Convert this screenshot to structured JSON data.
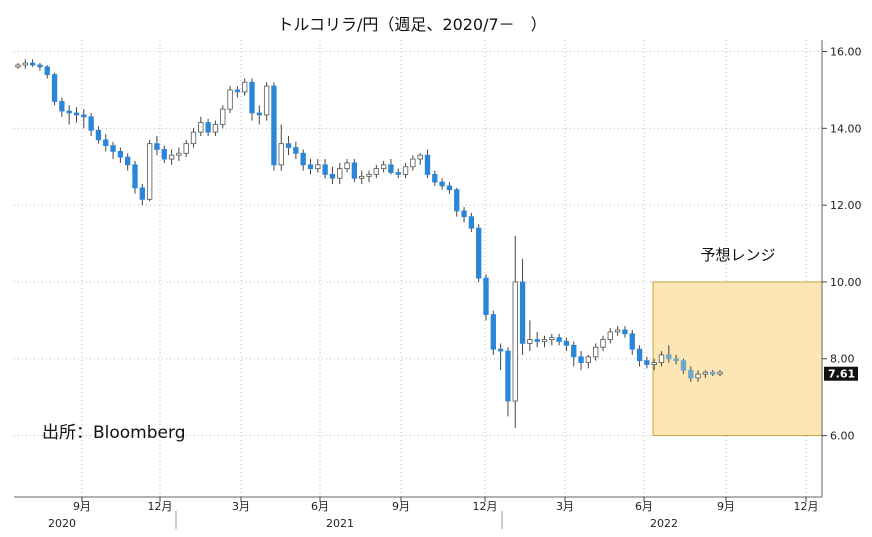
{
  "chart_data": {
    "type": "candlestick",
    "title": "トルコリラ/円（週足、2020/7－　）",
    "source": "出所：Bloomberg",
    "range_label": "予想レンジ",
    "y_ticks": [
      "16.00",
      "14.00",
      "12.00",
      "10.00",
      "8.00",
      "6.00"
    ],
    "x_month_ticks": [
      "9月",
      "12月",
      "3月",
      "6月",
      "9月",
      "12月",
      "3月",
      "6月",
      "9月",
      "12月"
    ],
    "x_year_ticks": [
      "2020",
      "2021",
      "2022"
    ],
    "last_value_label": "7.61",
    "ylim": [
      4.4,
      16.3
    ],
    "forecast_range": {
      "low": 6.0,
      "high": 10.0,
      "color": "#fbe6b4",
      "border": "#c9a23a"
    },
    "colors": {
      "up": "#ffffff",
      "down": "#2c86d8",
      "forecast_down": "#6fa8c8",
      "wick": "#444444",
      "grid": "#bbbbbb",
      "last_label_bg": "#111111"
    },
    "series": [
      {
        "name": "",
        "data": [
          [
            15.6,
            15.7,
            15.55,
            15.65
          ],
          [
            15.65,
            15.8,
            15.55,
            15.7
          ],
          [
            15.7,
            15.8,
            15.6,
            15.65
          ],
          [
            15.65,
            15.7,
            15.5,
            15.6
          ],
          [
            15.6,
            15.65,
            15.3,
            15.4
          ],
          [
            15.4,
            15.45,
            14.6,
            14.7
          ],
          [
            14.7,
            14.8,
            14.3,
            14.45
          ],
          [
            14.45,
            14.6,
            14.1,
            14.4
          ],
          [
            14.4,
            14.55,
            14.15,
            14.35
          ],
          [
            14.35,
            14.5,
            14.0,
            14.3
          ],
          [
            14.3,
            14.4,
            13.8,
            13.95
          ],
          [
            13.95,
            14.05,
            13.6,
            13.7
          ],
          [
            13.7,
            13.85,
            13.4,
            13.55
          ],
          [
            13.55,
            13.65,
            13.2,
            13.4
          ],
          [
            13.4,
            13.5,
            13.1,
            13.25
          ],
          [
            13.25,
            13.35,
            12.9,
            13.05
          ],
          [
            13.05,
            13.15,
            12.3,
            12.45
          ],
          [
            12.45,
            12.55,
            12.0,
            12.15
          ],
          [
            12.15,
            13.7,
            12.1,
            13.6
          ],
          [
            13.6,
            13.8,
            13.3,
            13.45
          ],
          [
            13.45,
            13.55,
            13.1,
            13.2
          ],
          [
            13.2,
            13.45,
            13.05,
            13.3
          ],
          [
            13.3,
            13.5,
            13.15,
            13.35
          ],
          [
            13.35,
            13.7,
            13.25,
            13.6
          ],
          [
            13.6,
            14.0,
            13.5,
            13.9
          ],
          [
            13.9,
            14.3,
            13.8,
            14.15
          ],
          [
            14.15,
            14.25,
            13.8,
            13.9
          ],
          [
            13.9,
            14.2,
            13.8,
            14.1
          ],
          [
            14.1,
            14.6,
            14.0,
            14.5
          ],
          [
            14.5,
            15.1,
            14.4,
            15.0
          ],
          [
            15.0,
            15.1,
            14.8,
            14.95
          ],
          [
            14.95,
            15.3,
            14.85,
            15.2
          ],
          [
            15.2,
            15.3,
            14.2,
            14.4
          ],
          [
            14.4,
            14.6,
            14.1,
            14.35
          ],
          [
            14.35,
            15.2,
            14.2,
            15.1
          ],
          [
            15.1,
            15.2,
            12.9,
            13.05
          ],
          [
            13.05,
            14.1,
            12.9,
            13.6
          ],
          [
            13.6,
            13.8,
            13.3,
            13.5
          ],
          [
            13.5,
            13.65,
            13.2,
            13.35
          ],
          [
            13.35,
            13.45,
            12.9,
            13.05
          ],
          [
            13.05,
            13.2,
            12.8,
            12.95
          ],
          [
            12.95,
            13.2,
            12.85,
            13.05
          ],
          [
            13.05,
            13.2,
            12.7,
            12.8
          ],
          [
            12.8,
            13.0,
            12.55,
            12.7
          ],
          [
            12.7,
            13.1,
            12.55,
            12.95
          ],
          [
            12.95,
            13.2,
            12.85,
            13.1
          ],
          [
            13.1,
            13.2,
            12.6,
            12.7
          ],
          [
            12.7,
            12.9,
            12.55,
            12.75
          ],
          [
            12.75,
            12.9,
            12.6,
            12.8
          ],
          [
            12.8,
            13.05,
            12.7,
            12.95
          ],
          [
            12.95,
            13.15,
            12.85,
            13.05
          ],
          [
            13.05,
            13.2,
            12.8,
            12.85
          ],
          [
            12.85,
            12.95,
            12.7,
            12.8
          ],
          [
            12.8,
            13.1,
            12.7,
            13.0
          ],
          [
            13.0,
            13.3,
            12.9,
            13.2
          ],
          [
            13.2,
            13.35,
            13.05,
            13.3
          ],
          [
            13.3,
            13.45,
            12.7,
            12.8
          ],
          [
            12.8,
            12.9,
            12.5,
            12.6
          ],
          [
            12.6,
            12.7,
            12.4,
            12.5
          ],
          [
            12.5,
            12.6,
            12.3,
            12.4
          ],
          [
            12.4,
            12.45,
            11.7,
            11.85
          ],
          [
            11.85,
            11.95,
            11.55,
            11.7
          ],
          [
            11.7,
            11.8,
            11.3,
            11.4
          ],
          [
            11.4,
            11.5,
            10.0,
            10.1
          ],
          [
            10.1,
            10.2,
            9.0,
            9.15
          ],
          [
            9.15,
            9.25,
            8.1,
            8.25
          ],
          [
            8.25,
            8.4,
            7.7,
            8.2
          ],
          [
            8.2,
            8.3,
            6.5,
            6.9
          ],
          [
            6.9,
            11.2,
            6.2,
            10.0
          ],
          [
            10.0,
            10.6,
            8.1,
            8.4
          ],
          [
            8.4,
            9.0,
            8.2,
            8.5
          ],
          [
            8.5,
            8.7,
            8.3,
            8.45
          ],
          [
            8.45,
            8.6,
            8.3,
            8.5
          ],
          [
            8.5,
            8.65,
            8.35,
            8.55
          ],
          [
            8.55,
            8.65,
            8.35,
            8.45
          ],
          [
            8.45,
            8.55,
            8.2,
            8.35
          ],
          [
            8.35,
            8.45,
            7.8,
            8.05
          ],
          [
            8.05,
            8.2,
            7.7,
            7.9
          ],
          [
            7.9,
            8.1,
            7.75,
            8.05
          ],
          [
            8.05,
            8.4,
            7.95,
            8.3
          ],
          [
            8.3,
            8.6,
            8.2,
            8.5
          ],
          [
            8.5,
            8.8,
            8.4,
            8.7
          ],
          [
            8.7,
            8.85,
            8.6,
            8.75
          ],
          [
            8.75,
            8.85,
            8.55,
            8.65
          ],
          [
            8.65,
            8.75,
            8.1,
            8.25
          ],
          [
            8.25,
            8.35,
            7.8,
            7.95
          ],
          [
            7.95,
            8.05,
            7.75,
            7.85
          ],
          [
            7.85,
            8.0,
            7.7,
            7.9
          ],
          [
            7.9,
            8.2,
            7.8,
            8.1
          ],
          [
            8.1,
            8.35,
            7.9,
            8.0
          ],
          [
            8.0,
            8.1,
            7.85,
            7.95
          ],
          [
            7.95,
            8.0,
            7.6,
            7.7
          ],
          [
            7.7,
            7.8,
            7.4,
            7.5
          ],
          [
            7.5,
            7.7,
            7.4,
            7.6
          ],
          [
            7.6,
            7.7,
            7.5,
            7.65
          ],
          [
            7.65,
            7.7,
            7.55,
            7.6
          ],
          [
            7.6,
            7.7,
            7.55,
            7.65
          ]
        ]
      }
    ]
  }
}
